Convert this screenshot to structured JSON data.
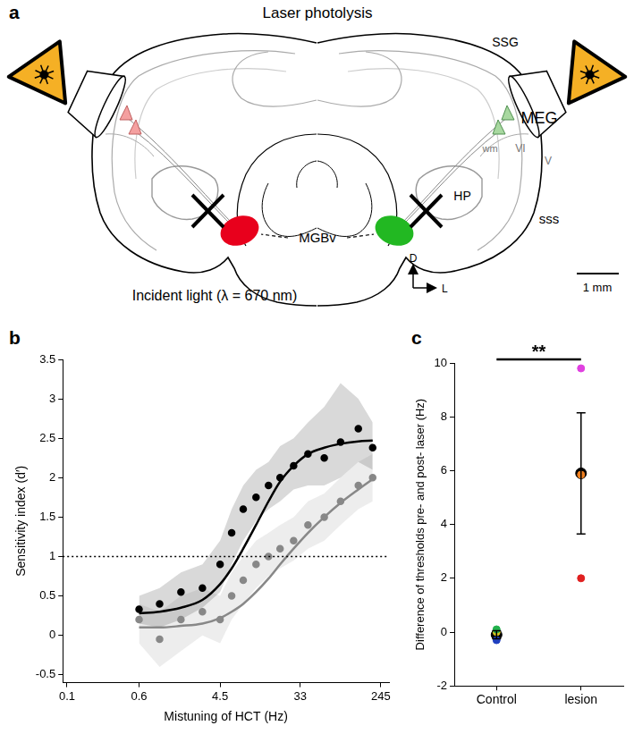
{
  "panel_labels": [
    "a",
    "b",
    "c"
  ],
  "diagram": {
    "title": "Laser photolysis",
    "labels": {
      "ssg": "SSG",
      "meg": "MEG",
      "wm": "wm",
      "vi": "VI",
      "v": "V",
      "hp": "HP",
      "sss": "sss",
      "mgbv": "MGBv"
    },
    "orientation": {
      "dorsal": "D",
      "lateral": "L"
    },
    "scale_bar": "1 mm",
    "caption": "Incident light (λ = 670 nm)"
  },
  "chart_data": [
    {
      "type": "line",
      "x_label": "Mistuning of HCT (Hz)",
      "y_label": "Sensitivity index (d′)",
      "log": "x",
      "grid": false,
      "xlim": [
        0.09,
        300
      ],
      "xticks": [
        0.1,
        0.6,
        4.5,
        33,
        245
      ],
      "ylim": [
        -0.6,
        3.5
      ],
      "yticks": [
        -0.5,
        0,
        0.5,
        1,
        1.5,
        2,
        2.5,
        3,
        3.5
      ],
      "x": [
        0.6,
        1,
        1.7,
        2.9,
        4.5,
        6,
        8,
        11,
        15,
        20,
        28,
        40,
        60,
        90,
        140,
        200
      ],
      "series": [
        {
          "type": "scatter",
          "color": "#000000",
          "marker": "circle",
          "values": [
            0.33,
            0.4,
            0.55,
            0.6,
            0.9,
            1.3,
            1.6,
            1.75,
            1.9,
            2.0,
            2.15,
            2.3,
            2.25,
            2.45,
            2.62,
            2.38
          ],
          "band_low": [
            0.15,
            0.1,
            0.2,
            0.35,
            0.55,
            0.9,
            1.2,
            1.45,
            1.6,
            1.7,
            1.85,
            1.9,
            1.9,
            2.0,
            2.2,
            2.1
          ],
          "band_high": [
            0.5,
            0.6,
            0.8,
            0.9,
            1.2,
            1.6,
            1.9,
            2.1,
            2.2,
            2.4,
            2.5,
            2.7,
            2.9,
            3.2,
            3.0,
            2.7
          ]
        },
        {
          "type": "line",
          "color": "#000000",
          "line_style": "solid",
          "values": [
            0.28,
            0.3,
            0.35,
            0.45,
            0.65,
            0.85,
            1.1,
            1.4,
            1.7,
            1.95,
            2.15,
            2.3,
            2.38,
            2.43,
            2.46,
            2.47
          ]
        },
        {
          "type": "scatter",
          "color": "#888888",
          "marker": "circle",
          "values": [
            0.2,
            -0.05,
            0.2,
            0.3,
            0.2,
            0.5,
            0.7,
            0.9,
            1.0,
            1.1,
            1.2,
            1.4,
            1.5,
            1.7,
            1.9,
            2.0
          ],
          "band_low": [
            -0.1,
            -0.4,
            -0.2,
            0.0,
            -0.1,
            0.2,
            0.4,
            0.6,
            0.75,
            0.85,
            0.95,
            1.1,
            1.2,
            1.4,
            1.6,
            1.7
          ],
          "band_high": [
            0.4,
            0.3,
            0.5,
            0.6,
            0.5,
            0.8,
            1.0,
            1.2,
            1.3,
            1.4,
            1.5,
            1.7,
            1.8,
            2.0,
            2.2,
            2.3
          ]
        },
        {
          "type": "line",
          "color": "#888888",
          "line_style": "solid",
          "values": [
            0.1,
            0.1,
            0.12,
            0.15,
            0.22,
            0.3,
            0.4,
            0.55,
            0.72,
            0.9,
            1.1,
            1.3,
            1.5,
            1.68,
            1.85,
            1.98
          ]
        }
      ],
      "reference_lines": [
        {
          "y": 1,
          "line_style": "dotted"
        }
      ]
    },
    {
      "type": "scatter",
      "y_label": "Difference of thresholds pre- and post- laser (Hz)",
      "grid": false,
      "categories": [
        "Control",
        "lesion"
      ],
      "ylim": [
        -2,
        10
      ],
      "yticks": [
        -2,
        0,
        2,
        4,
        6,
        8,
        10
      ],
      "series": [
        {
          "color": "#22b14c",
          "marker": "circle",
          "values": [
            0.1,
            null
          ]
        },
        {
          "color": "#d4c020",
          "marker": "circle",
          "values": [
            0.0,
            null
          ]
        },
        {
          "color": "#2040c0",
          "marker": "circle",
          "values": [
            -0.3,
            null
          ]
        },
        {
          "color": "#e040e0",
          "marker": "circle",
          "values": [
            null,
            9.8
          ]
        },
        {
          "color": "#f08020",
          "marker": "circle",
          "values": [
            null,
            5.85
          ]
        },
        {
          "color": "#e02020",
          "marker": "circle",
          "values": [
            null,
            2.0
          ]
        },
        {
          "color": "#000000",
          "marker": "circle",
          "values": [
            -0.1,
            5.9
          ],
          "error": [
            0.15,
            2.25
          ]
        }
      ],
      "annotations": [
        {
          "text": "**",
          "between": [
            "Control",
            "lesion"
          ],
          "y": 10
        }
      ]
    }
  ]
}
